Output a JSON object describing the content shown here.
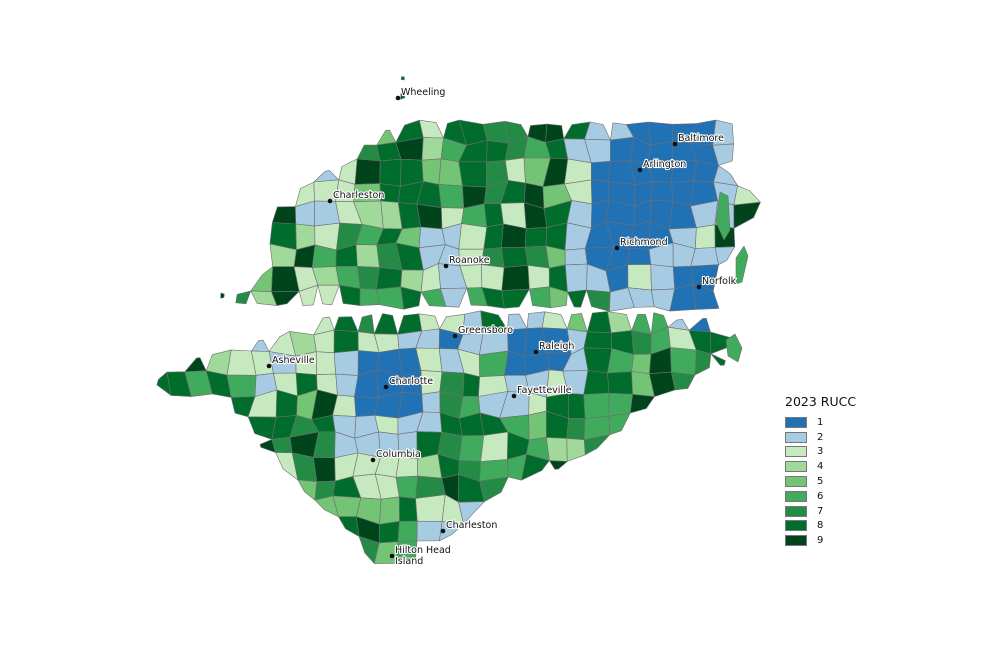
{
  "legend": {
    "title": "2023 RUCC",
    "classes": [
      {
        "label": "1",
        "color": "#2171b5"
      },
      {
        "label": "2",
        "color": "#a6cbe3"
      },
      {
        "label": "3",
        "color": "#c7e9c0"
      },
      {
        "label": "4",
        "color": "#a1d99b"
      },
      {
        "label": "5",
        "color": "#74c476"
      },
      {
        "label": "6",
        "color": "#41ab5d"
      },
      {
        "label": "7",
        "color": "#238b45"
      },
      {
        "label": "8",
        "color": "#006d2c"
      },
      {
        "label": "9",
        "color": "#00441b"
      }
    ]
  },
  "cities": [
    {
      "name": "Wheeling"
    },
    {
      "name": "Baltimore"
    },
    {
      "name": "Arlington"
    },
    {
      "name": "Charleston"
    },
    {
      "name": "Richmond"
    },
    {
      "name": "Roanoke"
    },
    {
      "name": "Norfolk"
    },
    {
      "name": "Greensboro"
    },
    {
      "name": "Raleigh"
    },
    {
      "name": "Asheville"
    },
    {
      "name": "Charlotte"
    },
    {
      "name": "Fayetteville"
    },
    {
      "name": "Columbia"
    },
    {
      "name": "Charleston"
    },
    {
      "name": "Hilton Head\nIsland"
    }
  ]
}
